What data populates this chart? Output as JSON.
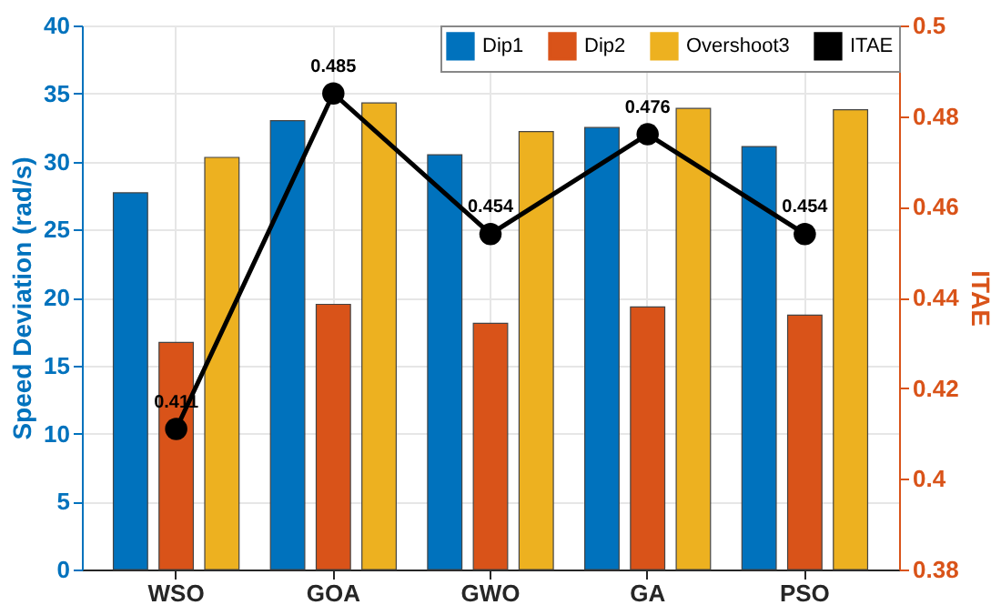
{
  "chart_data": {
    "type": "bar",
    "xlabel": null,
    "ylabel": "Speed Deviation (rad/s)",
    "y2label": "ITAE",
    "categories": [
      "WSO",
      "GOA",
      "GWO",
      "GA",
      "PSO"
    ],
    "series": [
      {
        "name": "Dip1",
        "color": "#0072bd",
        "values": [
          27.7,
          33.0,
          30.5,
          32.5,
          31.1
        ]
      },
      {
        "name": "Dip2",
        "color": "#d95319",
        "values": [
          16.7,
          19.5,
          18.1,
          19.3,
          18.7
        ]
      },
      {
        "name": "Overshoot3",
        "color": "#edb120",
        "values": [
          30.3,
          34.3,
          32.2,
          33.9,
          33.8
        ]
      },
      {
        "name": "ITAE",
        "type": "line",
        "axis": "y2",
        "color": "#000000",
        "marker": "circle",
        "values": [
          0.411,
          0.485,
          0.454,
          0.476,
          0.454
        ],
        "value_labels": [
          "0.411",
          "0.485",
          "0.454",
          "0.476",
          "0.454"
        ]
      }
    ],
    "ylim": [
      0,
      40
    ],
    "yticks": [
      0,
      5,
      10,
      15,
      20,
      25,
      30,
      35,
      40
    ],
    "y2lim": [
      0.38,
      0.5
    ],
    "y2ticks": [
      0.38,
      0.4,
      0.42,
      0.44,
      0.46,
      0.48,
      0.5
    ],
    "grid": true,
    "legend": "top right"
  }
}
